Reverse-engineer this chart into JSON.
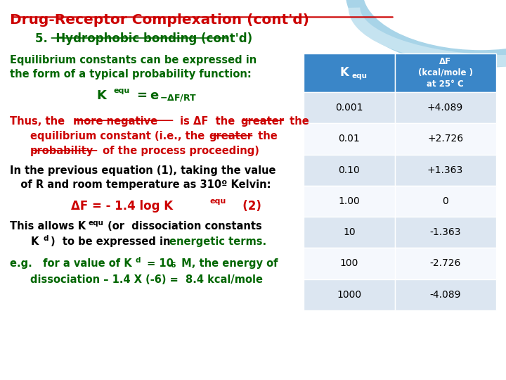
{
  "title": "Drug-Receptor Complexation (cont'd)",
  "subtitle": "5.  Hydrophobic bonding (cont'd)",
  "bg_color": "#ffffff",
  "title_color": "#cc0000",
  "subtitle_color": "#006600",
  "green_color": "#006600",
  "red_color": "#cc0000",
  "black_color": "#000000",
  "teal_header_color": "#3a86c8",
  "table_alt_row": "#dce6f1",
  "table_white_row": "#f5f8fd",
  "table_kequ": [
    "0.001",
    "0.01",
    "0.10",
    "1.00",
    "10",
    "100",
    "1000"
  ],
  "table_df": [
    "+4.089",
    "+2.726",
    "+1.363",
    "0",
    "-1.363",
    "-2.726",
    "-4.089"
  ],
  "arc1_color": "#a8d4e8",
  "arc2_color": "#c5e3f0"
}
